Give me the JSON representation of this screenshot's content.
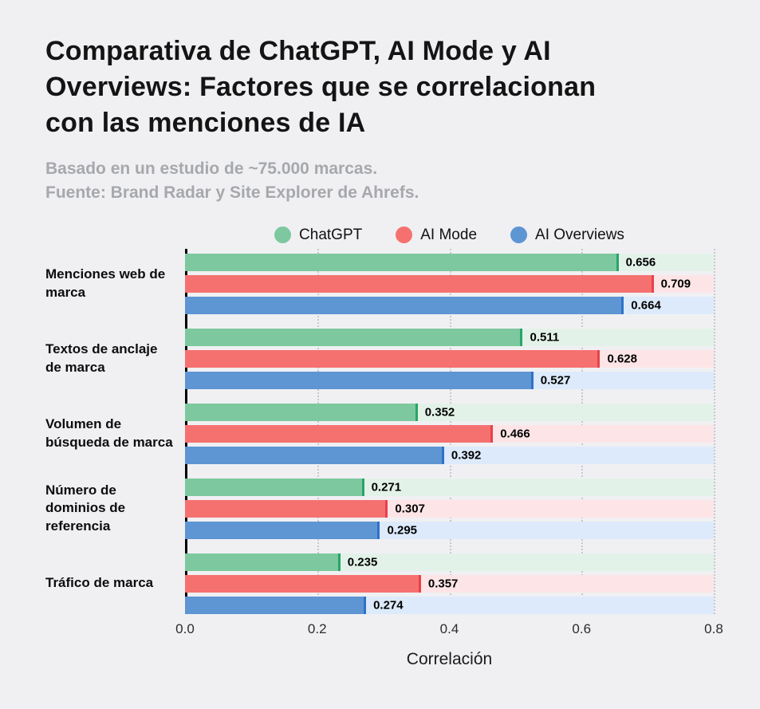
{
  "title": "Comparativa de ChatGPT, AI Mode y AI\nOverviews: Factores que se correlacionan\ncon las menciones de IA",
  "subtitle": "Basado en un estudio de ~75.000 marcas.\nFuente: Brand Radar y Site Explorer de Ahrefs.",
  "chart_data": {
    "type": "bar",
    "orientation": "horizontal",
    "title": "Comparativa de ChatGPT, AI Mode y AI Overviews: Factores que se correlacionan con las menciones de IA",
    "subtitle": "Basado en un estudio de ~75.000 marcas. Fuente: Brand Radar y Site Explorer de Ahrefs.",
    "categories": [
      "Menciones web de marca",
      "Textos de anclaje de marca",
      "Volumen de búsqueda de marca",
      "Número de dominios de referencia",
      "Tráfico de marca"
    ],
    "series": [
      {
        "name": "ChatGPT",
        "color": "#7dc89e",
        "track_color": "#e3f2e9",
        "edge_color": "#27a567",
        "values": [
          0.656,
          0.511,
          0.352,
          0.271,
          0.235
        ]
      },
      {
        "name": "AI Mode",
        "color": "#f5716f",
        "track_color": "#fde5e7",
        "edge_color": "#e8414b",
        "values": [
          0.709,
          0.628,
          0.466,
          0.307,
          0.357
        ]
      },
      {
        "name": "AI Overviews",
        "color": "#5e95d3",
        "track_color": "#ddeafb",
        "edge_color": "#2e72c6",
        "values": [
          0.664,
          0.527,
          0.392,
          0.295,
          0.274
        ]
      }
    ],
    "xlabel": "Correlación",
    "xlim": [
      0,
      0.8
    ],
    "xticks": [
      "0.0",
      "0.2",
      "0.4",
      "0.6",
      "0.8"
    ],
    "legend_position": "top",
    "grid": "dotted-vertical",
    "background": "#f0f0f3"
  }
}
